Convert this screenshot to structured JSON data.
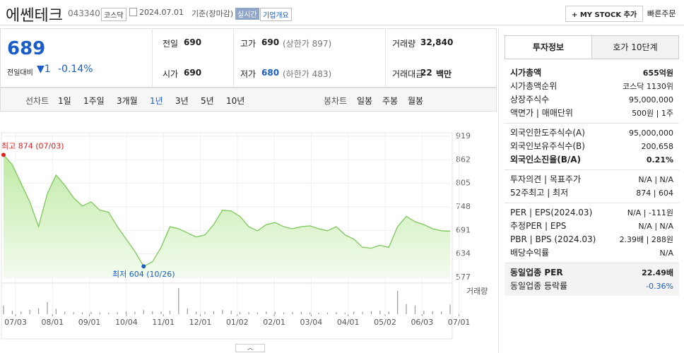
{
  "header": {
    "title": "에쎈테크",
    "code": "043340",
    "market": "코스닥",
    "date": "2024.07.01",
    "basis": "기준(장마감)",
    "realtime": "실시간",
    "company_info": "기업개요",
    "my_stock": "+ MY STOCK 추가",
    "quick_order": "빠른주문"
  },
  "quote": {
    "price": "689",
    "change_label": "전일대비",
    "change": "▼1",
    "change_rate": "-0.14%",
    "items": [
      {
        "label": "전일",
        "value": "690"
      },
      {
        "label": "고가",
        "value": "690",
        "note": "(상한가 897)"
      },
      {
        "label": "거래량",
        "value": "32,840"
      },
      {
        "label": "시가",
        "value": "690"
      },
      {
        "label": "저가",
        "value": "680",
        "note": "(하한가 483)"
      },
      {
        "label": "거래대금",
        "value": "22",
        "unit": "백만"
      }
    ]
  },
  "chart_tabs": {
    "line_label": "선차트",
    "line_periods": [
      "1일",
      "1주일",
      "3개월",
      "1년",
      "3년",
      "5년",
      "10년"
    ],
    "selected": 3,
    "candle_label": "봉차트",
    "candle_periods": [
      "일봉",
      "주봉",
      "월봉"
    ]
  },
  "invest": {
    "tabs": [
      "투자정보",
      "호가 10단계"
    ],
    "groups": [
      [
        {
          "label": "시가총액",
          "value": "655억원",
          "bold": true
        },
        {
          "label": "시가총액순위",
          "value": "코스닥 1130위"
        },
        {
          "label": "상장주식수",
          "value": "95,000,000"
        },
        {
          "label": "액면가 | 매매단위",
          "value": "500원 | 1주"
        }
      ],
      [
        {
          "label": "외국인한도주식수(A)",
          "value": "95,000,000"
        },
        {
          "label": "외국인보유주식수(B)",
          "value": "200,658"
        },
        {
          "label": "외국인소진율(B/A)",
          "value": "0.21%",
          "bold": true
        }
      ],
      [
        {
          "label": "투자의견 | 목표주가",
          "value": "N/A | N/A"
        },
        {
          "label": "52주최고 | 최저",
          "value": "874 | 604"
        }
      ],
      [
        {
          "label": "PER | EPS(2024.03)",
          "value": "N/A | -111원"
        },
        {
          "label": "추정PER | EPS",
          "value": "N/A | N/A"
        },
        {
          "label": "PBR | BPS (2024.03)",
          "value": "2.39배 | 288원"
        },
        {
          "label": "배당수익률",
          "value": "N/A"
        }
      ],
      [
        {
          "label": "동일업종 PER",
          "value": "22.49배",
          "bold": true
        },
        {
          "label": "동일업종 등락률",
          "value": "-0.36%",
          "color": "#1a5dc8"
        }
      ]
    ]
  },
  "chart_data": {
    "type": "line",
    "color": "#7cc95a",
    "ylim": [
      577,
      919
    ],
    "yticks": [
      577,
      634,
      691,
      748,
      805,
      862,
      919
    ],
    "grid": true,
    "xtick_labels": [
      "07/03",
      "08/01",
      "09/01",
      "10/04",
      "11/01",
      "12/01",
      "01/02",
      "02/01",
      "03/04",
      "04/01",
      "05/02",
      "06/03",
      "07/01"
    ],
    "values": [
      874,
      850,
      805,
      760,
      700,
      780,
      825,
      800,
      770,
      750,
      760,
      740,
      735,
      700,
      670,
      640,
      604,
      615,
      650,
      700,
      695,
      685,
      675,
      680,
      705,
      740,
      738,
      725,
      700,
      690,
      705,
      710,
      700,
      695,
      700,
      702,
      695,
      690,
      700,
      680,
      670,
      650,
      648,
      655,
      650,
      700,
      725,
      712,
      705,
      695,
      690,
      689
    ],
    "volume_label": "거래량",
    "volume_color": "#999999",
    "volumes": [
      30000,
      12000,
      9000,
      15000,
      20000,
      42000,
      18000,
      9000,
      7000,
      6000,
      8000,
      6000,
      5000,
      7000,
      9000,
      8000,
      14000,
      10000,
      9000,
      12000,
      90000,
      20000,
      9000,
      8000,
      10000,
      15000,
      12000,
      8000,
      7000,
      6000,
      9000,
      8000,
      6000,
      7000,
      8000,
      6000,
      5000,
      6000,
      7000,
      5000,
      9000,
      8000,
      10000,
      12000,
      9000,
      80000,
      35000,
      30000,
      12000,
      10000,
      9000,
      32840
    ],
    "annotations": [
      {
        "text": "최고 874 (07/03)",
        "color": "#e02020"
      },
      {
        "text": "최저 604 (10/26)",
        "color": "#1a5dc8"
      }
    ]
  }
}
